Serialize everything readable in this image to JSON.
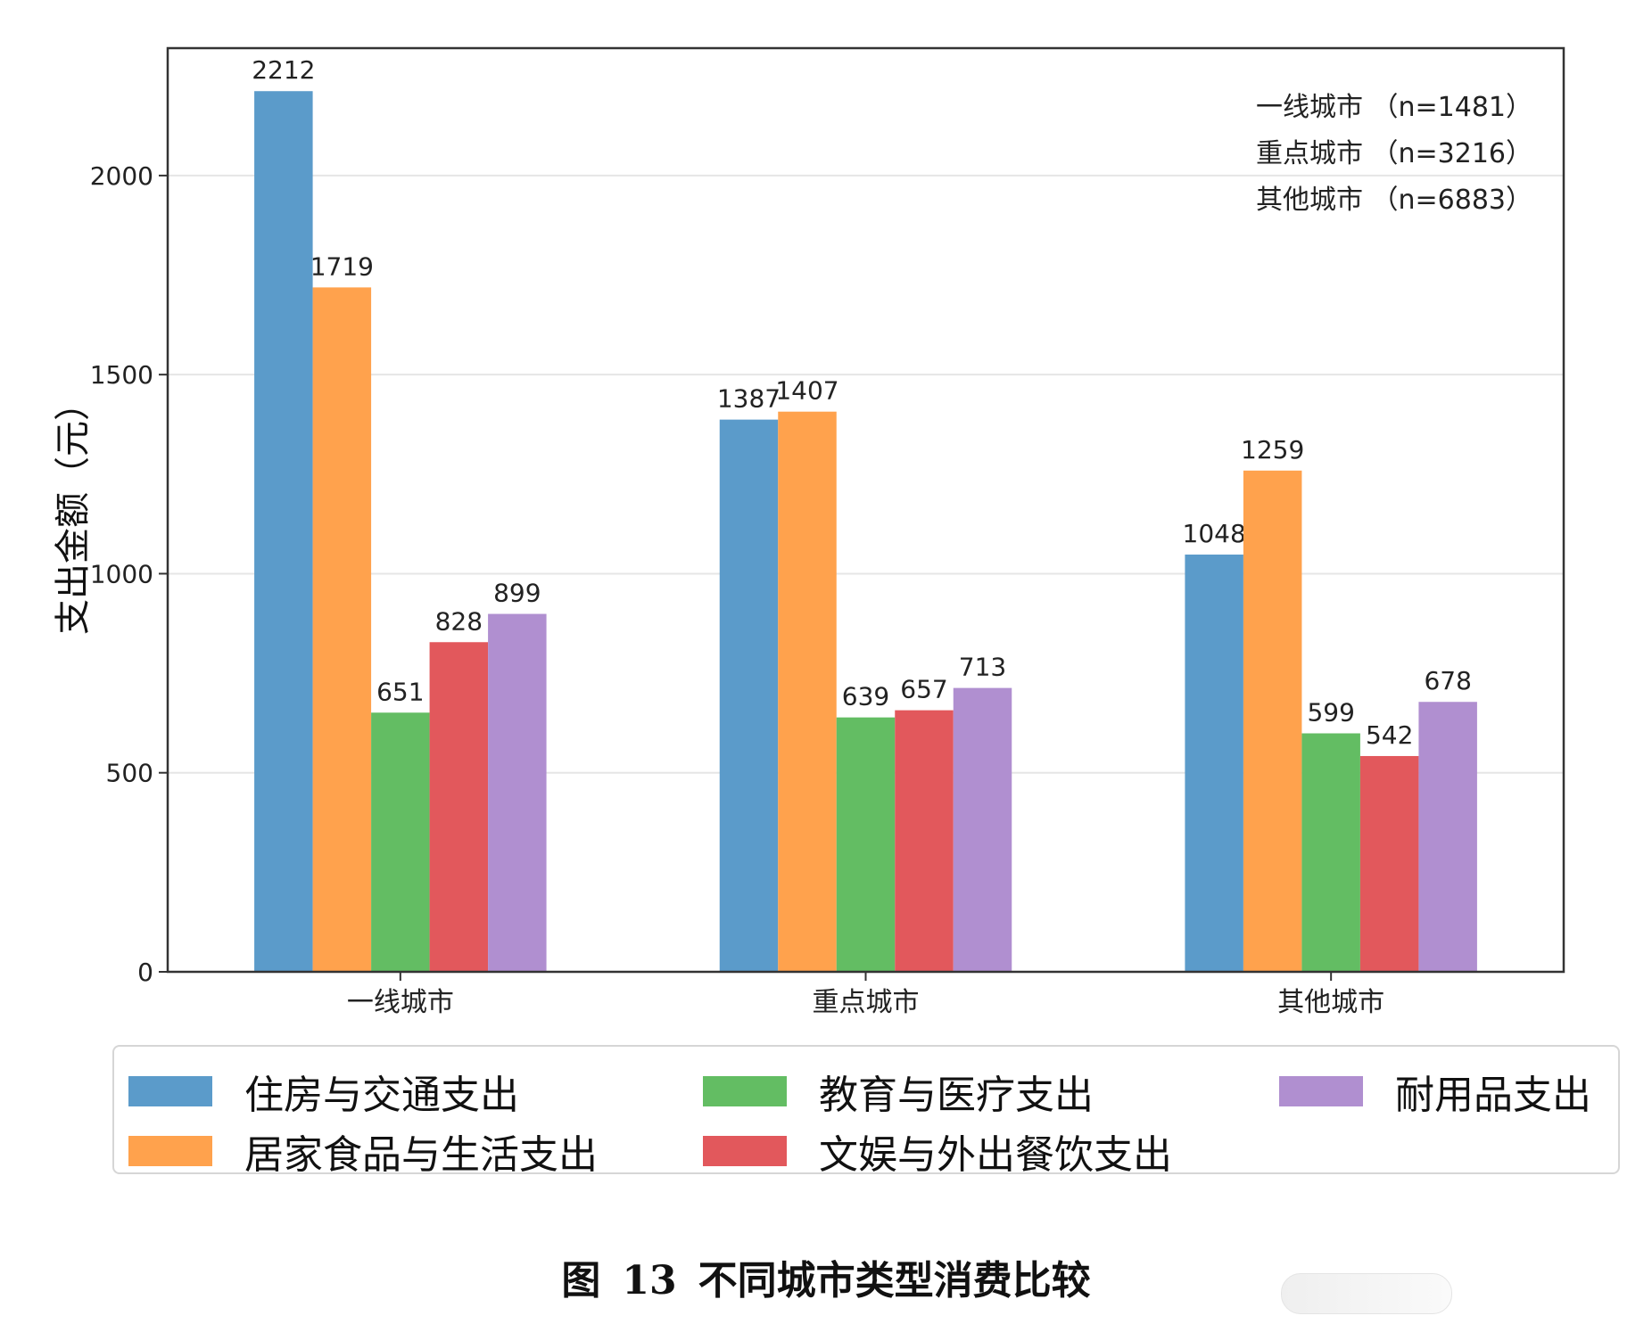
{
  "chart_data": {
    "type": "bar",
    "categories": [
      "一线城市",
      "重点城市",
      "其他城市"
    ],
    "series": [
      {
        "name": "住房与交通支出",
        "values": [
          2212,
          1387,
          1048
        ],
        "color": "#5b9bca"
      },
      {
        "name": "居家食品与生活支出",
        "values": [
          1719,
          1407,
          1259
        ],
        "color": "#ffa24d"
      },
      {
        "name": "教育与医疗支出",
        "values": [
          651,
          639,
          599
        ],
        "color": "#63bd63"
      },
      {
        "name": "文娱与外出餐饮支出",
        "values": [
          828,
          657,
          542
        ],
        "color": "#e2585c"
      },
      {
        "name": "耐用品支出",
        "values": [
          899,
          713,
          678
        ],
        "color": "#b08fd0"
      }
    ],
    "title": "",
    "xlabel": "",
    "ylabel": "支出金额（元）",
    "ylim": [
      0,
      2320
    ],
    "yticks": [
      0,
      500,
      1000,
      1500,
      2000
    ],
    "grid": true,
    "annotations": [
      "一线城市 （n=1481）",
      "重点城市 （n=3216）",
      "其他城市 （n=6883）"
    ],
    "legend_position": "bottom"
  },
  "caption": {
    "prefix": "图",
    "number": "13",
    "text": "不同城市类型消费比较"
  }
}
